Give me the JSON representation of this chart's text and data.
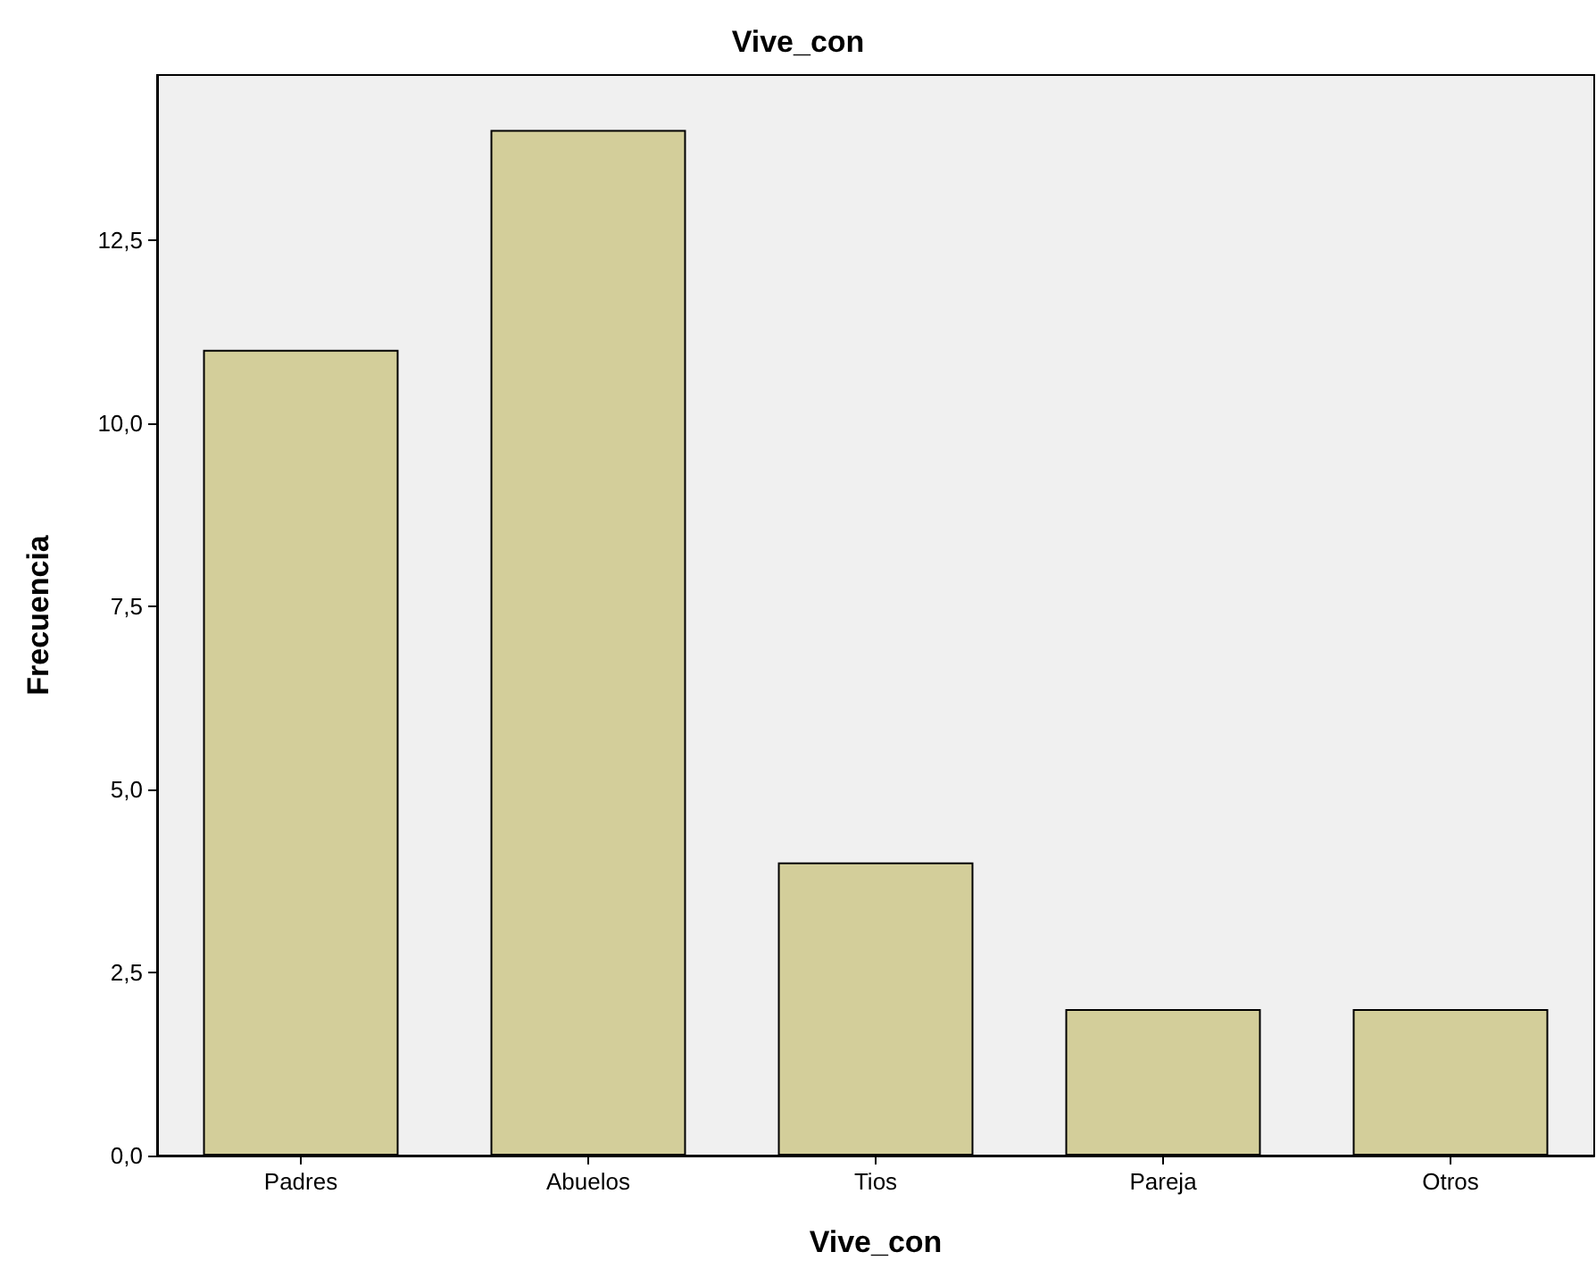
{
  "chart_data": {
    "type": "bar",
    "title": "Vive_con",
    "xlabel": "Vive_con",
    "ylabel": "Frecuencia",
    "categories": [
      "Padres",
      "Abuelos",
      "Tios",
      "Pareja",
      "Otros"
    ],
    "values": [
      11,
      14,
      4,
      2,
      2
    ],
    "color": "#d3ce9a",
    "ylim": [
      0,
      14.75
    ],
    "yticks": [
      {
        "value": 0,
        "label": "0,0"
      },
      {
        "value": 2.5,
        "label": "2,5"
      },
      {
        "value": 5,
        "label": "5,0"
      },
      {
        "value": 7.5,
        "label": "7,5"
      },
      {
        "value": 10,
        "label": "10,0"
      },
      {
        "value": 12.5,
        "label": "12,5"
      }
    ]
  }
}
